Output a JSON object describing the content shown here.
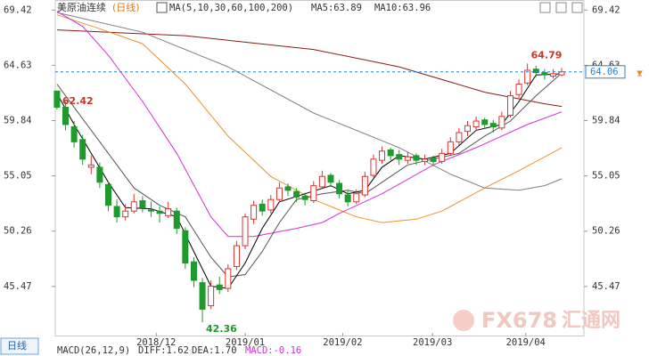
{
  "chart_data": {
    "type": "candlestick",
    "title": "美原油连续",
    "period": "(日线)",
    "ma_legend": "MA(5,10,30,60,100,200)",
    "ma_readouts": [
      "MA5:63.89",
      "MA10:63.96"
    ],
    "period_button": "日线",
    "macd": [
      "MACD(26,12,9)",
      "DIFF:1.62",
      "DEA:1.70",
      "MACD:-0.16"
    ],
    "watermark": [
      "FX678",
      "汇通网"
    ],
    "up_color": "#e0312f",
    "down_color": "#1f9a2c",
    "xlim": [
      -0.2,
      61.6
    ],
    "ylim": [
      41.14,
      70.29
    ],
    "yticks": [
      45.47,
      50.26,
      55.05,
      59.84,
      64.63,
      69.42
    ],
    "xticks": [
      {
        "value": 11.6,
        "label": "2018/12"
      },
      {
        "value": 22,
        "label": "2019/01"
      },
      {
        "value": 33.4,
        "label": "2019/02"
      },
      {
        "value": 43.9,
        "label": "2019/03"
      },
      {
        "value": 54.8,
        "label": "2019/04"
      }
    ],
    "open": [
      62.4,
      61.0,
      59.3,
      58.2,
      55.8,
      55.8,
      54.3,
      52.4,
      51.5,
      52.0,
      52.9,
      52.1,
      52.0,
      51.6,
      52.0,
      50.3,
      47.6,
      45.8,
      43.8,
      45.6,
      45.3,
      47.2,
      49.0,
      51.3,
      52.6,
      52.1,
      53.0,
      54.1,
      53.7,
      53.3,
      52.9,
      54.1,
      55.1,
      54.4,
      53.4,
      52.8,
      53.4,
      55.1,
      56.4,
      57.3,
      56.9,
      56.4,
      56.8,
      56.3,
      56.6,
      56.3,
      57.0,
      58.0,
      58.9,
      59.3,
      59.9,
      59.6,
      59.2,
      60.3,
      62.1,
      63.1,
      64.3,
      64.0,
      63.7,
      63.8
    ],
    "high": [
      62.42,
      61.5,
      59.8,
      58.6,
      56.8,
      56.2,
      54.6,
      53.0,
      52.6,
      53.5,
      53.3,
      52.8,
      52.4,
      52.8,
      52.3,
      50.6,
      48.0,
      46.2,
      46.0,
      46.3,
      47.4,
      49.4,
      51.8,
      52.9,
      53.0,
      53.4,
      54.5,
      54.4,
      54.0,
      53.6,
      54.6,
      55.5,
      55.3,
      54.7,
      53.8,
      53.9,
      55.4,
      56.9,
      57.6,
      57.5,
      57.3,
      57.1,
      57.0,
      56.9,
      56.8,
      57.4,
      58.4,
      59.2,
      59.8,
      60.2,
      60.1,
      59.9,
      60.6,
      62.4,
      63.4,
      64.79,
      64.6,
      64.3,
      64.3,
      64.4
    ],
    "low": [
      60.8,
      59.0,
      57.5,
      56.0,
      55.2,
      54.0,
      52.0,
      51.0,
      51.2,
      51.8,
      51.9,
      51.5,
      51.0,
      51.4,
      50.0,
      47.0,
      45.4,
      42.36,
      43.5,
      44.8,
      45.0,
      46.9,
      48.7,
      50.9,
      51.6,
      51.8,
      52.8,
      53.3,
      52.8,
      52.5,
      52.7,
      53.9,
      54.1,
      53.1,
      52.4,
      52.6,
      53.2,
      54.9,
      56.1,
      56.4,
      56.0,
      56.1,
      56.0,
      56.0,
      55.9,
      56.1,
      56.8,
      57.7,
      58.5,
      59.0,
      59.1,
      58.8,
      59.0,
      60.1,
      61.8,
      62.9,
      63.6,
      63.4,
      63.5,
      63.7
    ],
    "close": [
      61.0,
      59.5,
      58.0,
      56.5,
      56.0,
      54.5,
      52.5,
      51.5,
      52.0,
      52.8,
      52.3,
      52.0,
      51.8,
      52.2,
      50.5,
      47.5,
      46.0,
      43.5,
      45.5,
      45.2,
      47.0,
      49.0,
      51.5,
      52.5,
      52.0,
      53.0,
      54.0,
      53.8,
      53.2,
      53.0,
      54.2,
      55.0,
      54.5,
      53.5,
      52.8,
      53.5,
      55.0,
      56.5,
      57.2,
      56.8,
      56.5,
      56.7,
      56.4,
      56.5,
      56.3,
      57.0,
      58.0,
      58.8,
      59.4,
      59.8,
      59.5,
      59.3,
      60.2,
      62.0,
      63.0,
      64.2,
      64.0,
      63.8,
      63.9,
      64.06
    ],
    "series": [
      {
        "color": "#8b1a1a",
        "x": [
          0,
          15,
          30,
          40,
          50,
          57,
          59
        ],
        "values": [
          67.7,
          67.2,
          66.0,
          64.5,
          62.3,
          61.3,
          61.07
        ]
      },
      {
        "color": "#808080",
        "x": [
          0,
          10,
          20,
          30,
          40,
          46,
          50,
          54,
          57,
          59
        ],
        "values": [
          69.2,
          67.5,
          64.5,
          60.5,
          57.5,
          55.2,
          54.0,
          53.8,
          54.2,
          54.8
        ]
      },
      {
        "color": "#e8952a",
        "x": [
          0,
          5,
          10,
          15,
          20,
          25,
          30,
          35,
          38,
          42,
          45,
          50,
          54,
          59
        ],
        "values": [
          69.0,
          67.8,
          66.5,
          63.0,
          58.5,
          55.0,
          53.0,
          51.5,
          51.0,
          51.3,
          52.0,
          54.0,
          55.5,
          57.5
        ]
      },
      {
        "color": "#d62fd6",
        "x": [
          0,
          3,
          6,
          10,
          14,
          18,
          20,
          23,
          28,
          31,
          33,
          38,
          44,
          49,
          55,
          59
        ],
        "values": [
          69.3,
          68.0,
          65.5,
          61.5,
          57.0,
          51.5,
          49.8,
          49.8,
          50.5,
          51.0,
          51.8,
          53.5,
          56.0,
          57.5,
          59.5,
          60.6
        ]
      },
      {
        "color": "#555555",
        "x": [
          0,
          3,
          6,
          9,
          12,
          15,
          18,
          20,
          22,
          24,
          26,
          28,
          31,
          34,
          36,
          38,
          41,
          44,
          47,
          50,
          53,
          56,
          59
        ],
        "values": [
          63.0,
          60.0,
          57.0,
          54.0,
          52.5,
          51.5,
          48.0,
          46.3,
          46.5,
          48.5,
          51.0,
          53.0,
          53.5,
          53.8,
          53.5,
          54.5,
          56.0,
          56.5,
          57.0,
          58.5,
          59.8,
          62.0,
          63.96
        ]
      },
      {
        "color": "#000000",
        "x": [
          0,
          2,
          4,
          6,
          8,
          11,
          14,
          16,
          18,
          20,
          22,
          24,
          26,
          29,
          32,
          34,
          36,
          38,
          40,
          43,
          46,
          49,
          52,
          54,
          56,
          59
        ],
        "values": [
          62.2,
          59.5,
          57.0,
          54.5,
          52.3,
          52.2,
          51.5,
          48.5,
          45.5,
          45.3,
          47.5,
          50.5,
          52.8,
          53.5,
          54.2,
          53.5,
          53.8,
          55.8,
          56.8,
          56.5,
          57.0,
          59.0,
          59.5,
          61.5,
          63.8,
          63.89
        ]
      }
    ],
    "annotations": [
      {
        "x": 0,
        "value": 62.42,
        "color": "#c0392b"
      },
      {
        "x": 17,
        "value": 42.36,
        "color": "#1f9a2c"
      },
      {
        "x": 55,
        "value": 64.79,
        "color": "#c0392b"
      }
    ],
    "last": {
      "value": 64.06,
      "color": "#2a7fd0"
    }
  }
}
